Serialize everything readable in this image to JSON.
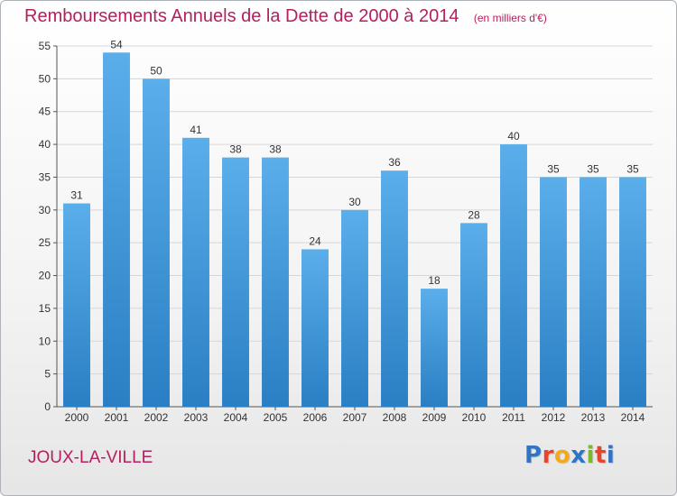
{
  "title": "Remboursements Annuels de la Dette de 2000 à 2014",
  "unit_note": "(en milliers d'€)",
  "commune": "JOUX-LA-VILLE",
  "logo": {
    "text": "Proxiti",
    "colors": [
      "#2e75c8",
      "#e8442a",
      "#f3a91b",
      "#2e75c8",
      "#7ab929",
      "#e8442a",
      "#2e75c8"
    ]
  },
  "colors": {
    "title": "#b3205f",
    "bar_top": "#5aaeea",
    "bar_bottom": "#2a7fc4",
    "grid": "#d6d6d6"
  },
  "chart_data": {
    "type": "bar",
    "categories": [
      "2000",
      "2001",
      "2002",
      "2003",
      "2004",
      "2005",
      "2006",
      "2007",
      "2008",
      "2009",
      "2010",
      "2011",
      "2012",
      "2013",
      "2014"
    ],
    "values": [
      31,
      54,
      50,
      41,
      38,
      38,
      24,
      30,
      36,
      18,
      28,
      40,
      35,
      35,
      35
    ],
    "ylim": [
      0,
      55
    ],
    "yticks": [
      0,
      5,
      10,
      15,
      20,
      25,
      30,
      35,
      40,
      45,
      50,
      55
    ],
    "grid": true,
    "legend": "none"
  }
}
